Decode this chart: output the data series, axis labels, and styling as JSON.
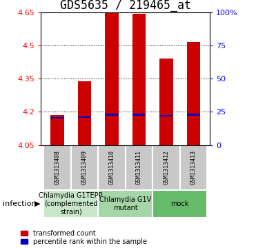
{
  "title": "GDS5635 / 219465_at",
  "samples": [
    "GSM1313408",
    "GSM1313409",
    "GSM1313410",
    "GSM1313411",
    "GSM1313412",
    "GSM1313413"
  ],
  "transformed_counts": [
    4.185,
    4.34,
    4.655,
    4.645,
    4.44,
    4.515
  ],
  "percentile_ranks": [
    4.173,
    4.177,
    4.187,
    4.187,
    4.182,
    4.187
  ],
  "bar_bottom": 4.05,
  "ylim": [
    4.05,
    4.65
  ],
  "yticks": [
    4.05,
    4.2,
    4.35,
    4.5,
    4.65
  ],
  "grid_lines": [
    4.2,
    4.35,
    4.5
  ],
  "right_tick_positions": [
    4.05,
    4.2,
    4.35,
    4.5,
    4.65
  ],
  "right_tick_labels": [
    "0",
    "25",
    "50",
    "75",
    "100%"
  ],
  "groups": [
    {
      "label": "Chlamydia G1TEPP\n(complemented\nstrain)",
      "start": 0,
      "end": 2,
      "color": "#c8e6c9"
    },
    {
      "label": "Chlamydia G1V\nmutant",
      "start": 2,
      "end": 4,
      "color": "#a5d6a7"
    },
    {
      "label": "mock",
      "start": 4,
      "end": 6,
      "color": "#66bb6a"
    }
  ],
  "bar_color": "#cc0000",
  "percentile_color": "#0000cc",
  "bar_width": 0.5,
  "sample_box_color": "#c8c8c8",
  "infection_label": "infection",
  "legend_items": [
    {
      "color": "#cc0000",
      "label": "transformed count"
    },
    {
      "color": "#0000cc",
      "label": "percentile rank within the sample"
    }
  ],
  "title_fontsize": 12,
  "tick_fontsize": 8,
  "sample_fontsize": 6,
  "group_fontsize": 7,
  "legend_fontsize": 7,
  "infection_fontsize": 8
}
